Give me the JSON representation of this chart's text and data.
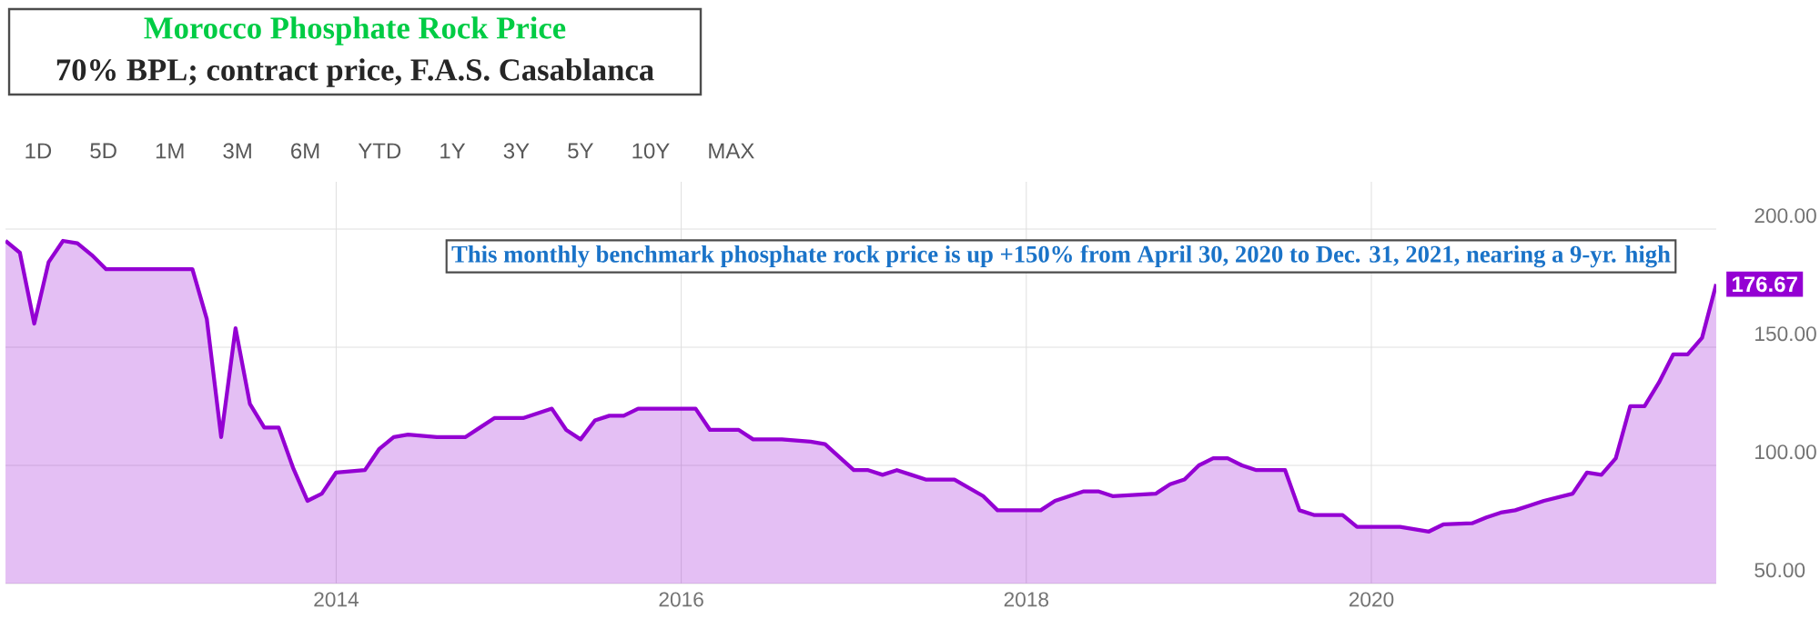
{
  "chart_data": {
    "type": "area",
    "title": "Morocco Phosphate Rock Price",
    "subtitle": "70% BPL; contract price, F.A.S. Casablanca",
    "annotations": [
      "This monthly benchmark phosphate rock price is up +150% from April 30, 2020 to Dec. 31, 2021, nearing a 9-yr. high",
      "1D",
      "5D",
      "1M",
      "3M",
      "6M",
      "YTD",
      "1Y",
      "3Y",
      "5Y",
      "10Y",
      "MAX"
    ],
    "x": [
      "2012-02",
      "2012-03",
      "2012-04",
      "2012-05",
      "2012-06",
      "2012-07",
      "2012-08",
      "2012-09",
      "2013-03",
      "2013-04",
      "2013-05",
      "2013-06",
      "2013-07",
      "2013-08",
      "2013-09",
      "2013-10",
      "2013-11",
      "2013-12",
      "2014-01",
      "2014-03",
      "2014-04",
      "2014-05",
      "2014-06",
      "2014-08",
      "2014-10",
      "2014-11",
      "2014-12",
      "2015-02",
      "2015-04",
      "2015-05",
      "2015-06",
      "2015-07",
      "2015-08",
      "2015-09",
      "2015-10",
      "2016-02",
      "2016-03",
      "2016-05",
      "2016-06",
      "2016-08",
      "2016-10",
      "2016-11",
      "2017-01",
      "2017-02",
      "2017-03",
      "2017-04",
      "2017-05",
      "2017-06",
      "2017-08",
      "2017-10",
      "2017-11",
      "2018-02",
      "2018-03",
      "2018-05",
      "2018-06",
      "2018-07",
      "2018-10",
      "2018-11",
      "2018-12",
      "2019-01",
      "2019-02",
      "2019-03",
      "2019-04",
      "2019-05",
      "2019-07",
      "2019-08",
      "2019-09",
      "2019-11",
      "2019-12",
      "2020-03",
      "2020-05",
      "2020-06",
      "2020-08",
      "2020-09",
      "2020-10",
      "2020-11",
      "2020-12",
      "2021-01",
      "2021-03",
      "2021-04",
      "2021-05",
      "2021-06",
      "2021-07",
      "2021-08",
      "2021-09",
      "2021-10",
      "2021-11",
      "2021-12-01",
      "2021-12-31"
    ],
    "series": [
      {
        "color": "#9400d3",
        "values": [
          195,
          190,
          160,
          186,
          195,
          194,
          189,
          183,
          183,
          162,
          112,
          158,
          126,
          116,
          116,
          99,
          85,
          88,
          97,
          98,
          107,
          112,
          113,
          112,
          112,
          116,
          120,
          120,
          124,
          115,
          111,
          119,
          121,
          121,
          124,
          124,
          115,
          115,
          111,
          111,
          110,
          109,
          98,
          98,
          96,
          98,
          96,
          94,
          94,
          87,
          81,
          81,
          85,
          89,
          89,
          87,
          88,
          92,
          94,
          100,
          103,
          103,
          100,
          98,
          98,
          81,
          79,
          79,
          74,
          74,
          72,
          75,
          75.5,
          78,
          80,
          81,
          83,
          85,
          88,
          97,
          96,
          103,
          125,
          125,
          135,
          147,
          147,
          154,
          176.67
        ],
        "value_labels": [
          null,
          null,
          null,
          null,
          null,
          null,
          null,
          null,
          null,
          null,
          null,
          null,
          null,
          null,
          null,
          null,
          null,
          null,
          null,
          null,
          null,
          null,
          null,
          null,
          null,
          null,
          null,
          null,
          null,
          null,
          null,
          null,
          null,
          null,
          null,
          null,
          null,
          null,
          null,
          null,
          null,
          null,
          null,
          null,
          null,
          null,
          null,
          null,
          null,
          null,
          null,
          null,
          null,
          null,
          null,
          null,
          null,
          null,
          null,
          null,
          null,
          null,
          null,
          null,
          null,
          null,
          null,
          null,
          null,
          null,
          null,
          null,
          null,
          null,
          null,
          null,
          null,
          null,
          null,
          null,
          null,
          null,
          null,
          null,
          null,
          null,
          null,
          null,
          "176.67"
        ]
      }
    ],
    "xlim": [
      "2012-02",
      "2021-12-31"
    ],
    "xticks": [
      "2014",
      "2016",
      "2018",
      "2020"
    ],
    "ylim": [
      50,
      220
    ],
    "yticks": [
      {
        "value": 50,
        "label": "50.00"
      },
      {
        "value": 100,
        "label": "100.00"
      },
      {
        "value": 150,
        "label": "150.00"
      },
      {
        "value": 200,
        "label": "200.00"
      }
    ],
    "grid": true
  }
}
